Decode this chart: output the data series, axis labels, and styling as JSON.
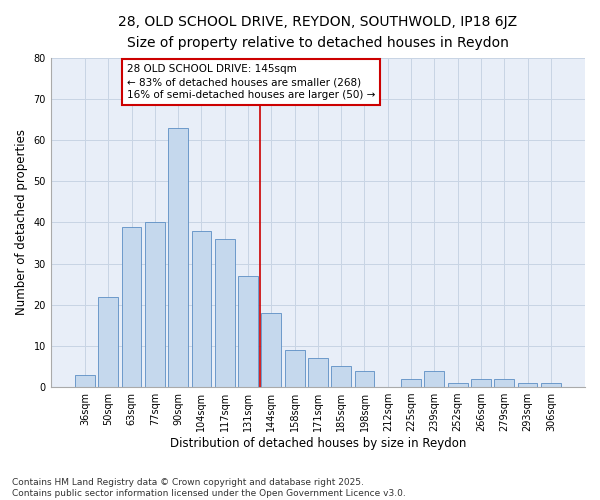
{
  "title1": "28, OLD SCHOOL DRIVE, REYDON, SOUTHWOLD, IP18 6JZ",
  "title2": "Size of property relative to detached houses in Reydon",
  "xlabel": "Distribution of detached houses by size in Reydon",
  "ylabel": "Number of detached properties",
  "categories": [
    "36sqm",
    "50sqm",
    "63sqm",
    "77sqm",
    "90sqm",
    "104sqm",
    "117sqm",
    "131sqm",
    "144sqm",
    "158sqm",
    "171sqm",
    "185sqm",
    "198sqm",
    "212sqm",
    "225sqm",
    "239sqm",
    "252sqm",
    "266sqm",
    "279sqm",
    "293sqm",
    "306sqm"
  ],
  "values": [
    3,
    22,
    39,
    40,
    63,
    38,
    36,
    27,
    18,
    9,
    7,
    5,
    4,
    0,
    2,
    4,
    1,
    2,
    2,
    1,
    1
  ],
  "bar_color": "#c5d8ed",
  "bar_edge_color": "#5b8ec4",
  "annotation_text": "28 OLD SCHOOL DRIVE: 145sqm\n← 83% of detached houses are smaller (268)\n16% of semi-detached houses are larger (50) →",
  "annotation_box_color": "#ffffff",
  "annotation_box_edge_color": "#cc0000",
  "grid_color": "#c8d4e4",
  "background_color": "#e8eef8",
  "ylim": [
    0,
    80
  ],
  "yticks": [
    0,
    10,
    20,
    30,
    40,
    50,
    60,
    70,
    80
  ],
  "footer_text": "Contains HM Land Registry data © Crown copyright and database right 2025.\nContains public sector information licensed under the Open Government Licence v3.0.",
  "title1_fontsize": 10,
  "title2_fontsize": 9,
  "xlabel_fontsize": 8.5,
  "ylabel_fontsize": 8.5,
  "tick_fontsize": 7,
  "annotation_fontsize": 7.5,
  "footer_fontsize": 6.5
}
